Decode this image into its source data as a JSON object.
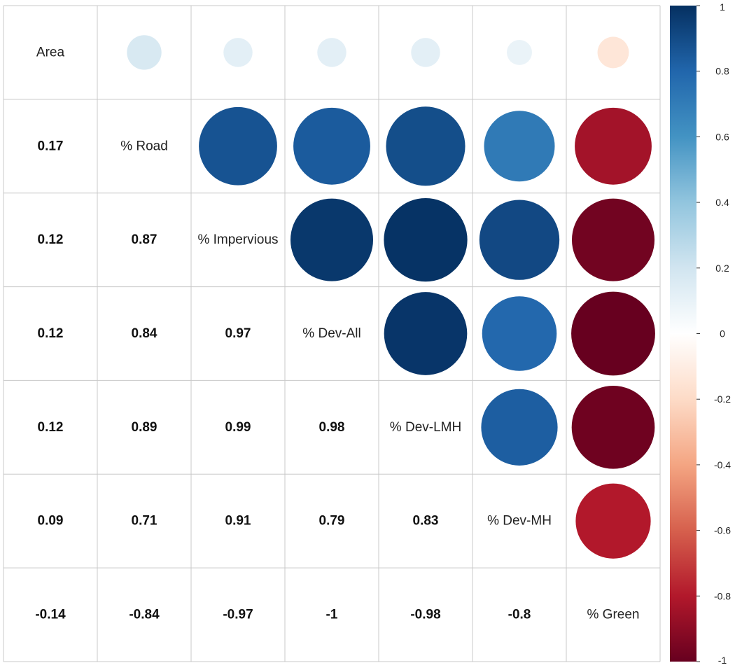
{
  "chart_data": {
    "type": "heatmap",
    "variables": [
      "Area",
      "% Road",
      "% Impervious",
      "% Dev-All",
      "% Dev-LMH",
      "% Dev-MH",
      "% Green"
    ],
    "matrix": [
      [
        1,
        0.17,
        0.12,
        0.12,
        0.12,
        0.09,
        -0.14
      ],
      [
        0.17,
        1,
        0.87,
        0.84,
        0.89,
        0.71,
        -0.84
      ],
      [
        0.12,
        0.87,
        1,
        0.97,
        0.99,
        0.91,
        -0.97
      ],
      [
        0.12,
        0.84,
        0.97,
        1,
        0.98,
        0.79,
        -1
      ],
      [
        0.12,
        0.89,
        0.99,
        0.98,
        1,
        0.83,
        -0.98
      ],
      [
        0.09,
        0.71,
        0.91,
        0.79,
        0.83,
        1,
        -0.8
      ],
      [
        -0.14,
        -0.84,
        -0.97,
        -1,
        -0.98,
        -0.8,
        1
      ]
    ],
    "matrix_labels": [
      [
        "",
        "",
        "",
        "",
        "",
        "",
        ""
      ],
      [
        "0.17",
        "",
        "",
        "",
        "",
        "",
        ""
      ],
      [
        "0.12",
        "0.87",
        "",
        "",
        "",
        "",
        ""
      ],
      [
        "0.12",
        "0.84",
        "0.97",
        "",
        "",
        "",
        ""
      ],
      [
        "0.12",
        "0.89",
        "0.99",
        "0.98",
        "",
        "",
        ""
      ],
      [
        "0.09",
        "0.71",
        "0.91",
        "0.79",
        "0.83",
        "",
        ""
      ],
      [
        "-0.14",
        "-0.84",
        "-0.97",
        "-1",
        "-0.98",
        "-0.8",
        ""
      ]
    ],
    "upper_triangle": "circle",
    "lower_triangle": "number",
    "diagonal": "variable name",
    "legend": {
      "position": "right",
      "range": [
        -1,
        1
      ],
      "ticks": [
        1,
        0.8,
        0.6,
        0.4,
        0.2,
        0,
        -0.2,
        -0.4,
        -0.6,
        -0.8,
        -1
      ],
      "tick_labels": [
        "1",
        "0.8",
        "0.6",
        "0.4",
        "0.2",
        "0",
        "-0.2",
        "-0.4",
        "-0.6",
        "-0.8",
        "-1"
      ]
    },
    "colors": {
      "scale_negative": "#67001F",
      "scale_neg_mid": "#B2182B",
      "scale_neg_light": "#F4A582",
      "scale_zero": "#FFFFFF",
      "scale_pos_light": "#92C5DE",
      "scale_pos_mid": "#2166AC",
      "scale_positive": "#053061",
      "grid": "#C8C8C8"
    },
    "grid": true
  }
}
